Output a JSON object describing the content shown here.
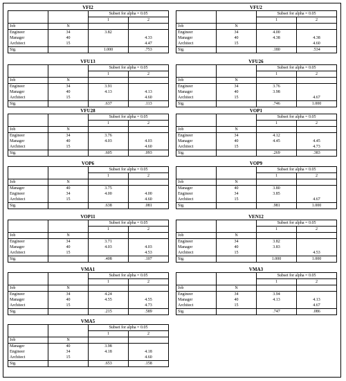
{
  "headers": {
    "job": "Job",
    "n": "N",
    "subset": "Subset for alpha = 0.05",
    "col1": "1",
    "col2": "2",
    "sig": "Sig."
  },
  "tables": [
    {
      "title": "VFI2",
      "rows": [
        [
          "Engineer",
          "34",
          "3.82",
          ""
        ],
        [
          "Manager",
          "40",
          "",
          "4.33"
        ],
        [
          "Architect",
          "15",
          "",
          "4.47"
        ]
      ],
      "sig": [
        "1.000",
        ".753"
      ]
    },
    {
      "title": "VFU2",
      "rows": [
        [
          "Engineer",
          "34",
          "4.00",
          ""
        ],
        [
          "Manager",
          "40",
          "4.38",
          "4.38"
        ],
        [
          "Architect",
          "15",
          "",
          "4.60"
        ]
      ],
      "sig": [
        ".180",
        ".534"
      ]
    },
    {
      "title": "VFU13",
      "rows": [
        [
          "Engineer",
          "34",
          "3.91",
          ""
        ],
        [
          "Manager",
          "40",
          "4.13",
          "4.13"
        ],
        [
          "Architect",
          "15",
          "",
          "4.60"
        ]
      ],
      "sig": [
        ".637",
        ".113"
      ]
    },
    {
      "title": "VFU26",
      "rows": [
        [
          "Engineer",
          "34",
          "3.76",
          ""
        ],
        [
          "Manager",
          "40",
          "3.98",
          ""
        ],
        [
          "Architect",
          "15",
          "",
          "4.67"
        ]
      ],
      "sig": [
        ".746",
        "1.000"
      ]
    },
    {
      "title": "VFU28",
      "rows": [
        [
          "Engineer",
          "34",
          "3.76",
          ""
        ],
        [
          "Manager",
          "40",
          "4.03",
          "4.03"
        ],
        [
          "Architect",
          "15",
          "",
          "4.60"
        ]
      ],
      "sig": [
        ".605",
        ".093"
      ]
    },
    {
      "title": "VOP1",
      "rows": [
        [
          "Engineer",
          "34",
          "4.12",
          ""
        ],
        [
          "Manager",
          "40",
          "4.45",
          "4.45"
        ],
        [
          "Architect",
          "15",
          "",
          "4.73"
        ]
      ],
      "sig": [
        ".269",
        ".383"
      ]
    },
    {
      "title": "VOP6",
      "rows": [
        [
          "Manager",
          "40",
          "3.75",
          ""
        ],
        [
          "Engineer",
          "34",
          "4.00",
          "4.00"
        ],
        [
          "Architect",
          "15",
          "",
          "4.60"
        ]
      ],
      "sig": [
        ".638",
        ".081"
      ]
    },
    {
      "title": "VOP9",
      "rows": [
        [
          "Manager",
          "40",
          "3.80",
          ""
        ],
        [
          "Engineer",
          "34",
          "3.85",
          ""
        ],
        [
          "Architect",
          "15",
          "",
          "4.67"
        ]
      ],
      "sig": [
        ".981",
        "1.000"
      ]
    },
    {
      "title": "VOP11",
      "rows": [
        [
          "Engineer",
          "34",
          "3.71",
          ""
        ],
        [
          "Manager",
          "40",
          "4.03",
          "4.03"
        ],
        [
          "Architect",
          "15",
          "",
          "4.53"
        ]
      ],
      "sig": [
        ".408",
        ".107"
      ]
    },
    {
      "title": "VEN12",
      "rows": [
        [
          "Engineer",
          "34",
          "3.82",
          ""
        ],
        [
          "Manager",
          "40",
          "3.83",
          ""
        ],
        [
          "Architect",
          "15",
          "",
          "4.53"
        ]
      ],
      "sig": [
        "1.000",
        "1.000"
      ]
    },
    {
      "title": "VMA1",
      "rows": [
        [
          "Engineer",
          "34",
          "4.24",
          ""
        ],
        [
          "Manager",
          "40",
          "4.55",
          "4.55"
        ],
        [
          "Architect",
          "15",
          "",
          "4.73"
        ]
      ],
      "sig": [
        ".215",
        ".589"
      ]
    },
    {
      "title": "VMA3",
      "rows": [
        [
          "Engineer",
          "34",
          "3.94",
          ""
        ],
        [
          "Manager",
          "40",
          "4.13",
          "4.13"
        ],
        [
          "Architect",
          "15",
          "",
          "4.67"
        ]
      ],
      "sig": [
        ".747",
        ".086"
      ]
    },
    {
      "title": "VMA5",
      "rows": [
        [
          "Manager",
          "40",
          "3.98",
          ""
        ],
        [
          "Engineer",
          "34",
          "4.18",
          "4.18"
        ],
        [
          "Architect",
          "15",
          "",
          "4.60"
        ]
      ],
      "sig": [
        ".653",
        ".158"
      ]
    }
  ]
}
